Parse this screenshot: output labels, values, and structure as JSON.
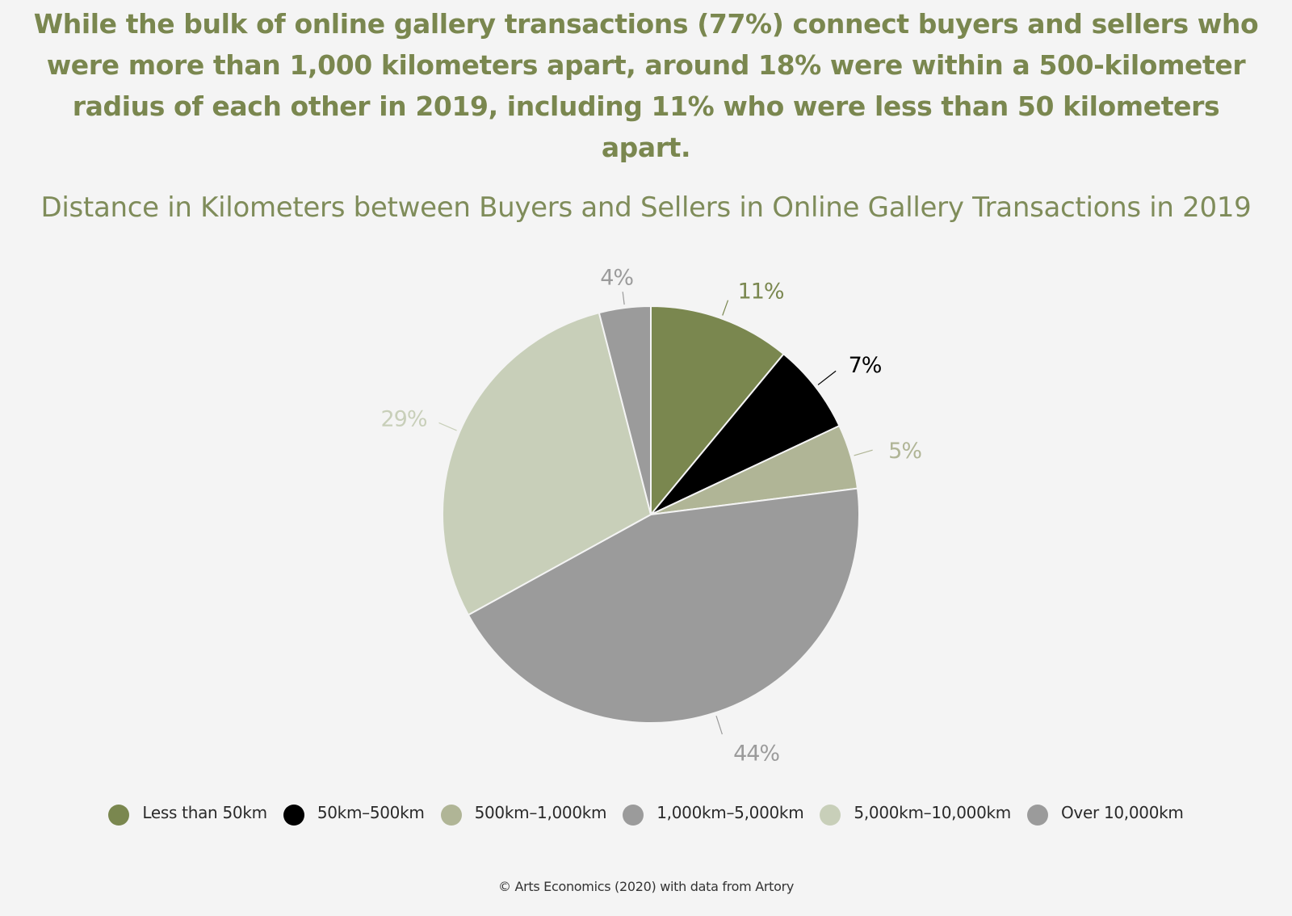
{
  "headline": "While the bulk of online gallery transactions (77%) connect buyers and sellers who were more than 1,000 kilometers apart, around 18% were within a 500-kilometer radius of each other in 2019, including 11% who were less than 50 kilometers apart.",
  "source": "© Arts Economics (2020) with data from Artory",
  "chart_data": {
    "type": "pie",
    "title": "Distance in Kilometers between Buyers and Sellers in Online Gallery Transactions in 2019",
    "categories": [
      "Less than 50km",
      "50km–500km",
      "500km–1,000km",
      "1,000km–5,000km",
      "5,000km–10,000km",
      "Over 10,000km"
    ],
    "values": [
      11,
      7,
      5,
      44,
      29,
      4
    ],
    "unit": "%",
    "data_labels": [
      "11%",
      "7%",
      "5%",
      "44%",
      "29%",
      "4%"
    ],
    "colors": [
      "#7a874f",
      "#000000",
      "#b0b596",
      "#9b9b9b",
      "#c8cfb9",
      "#9b9b9b"
    ],
    "label_colors": [
      "#7a874f",
      "#000000",
      "#b0b596",
      "#9b9b9b",
      "#c8cfb9",
      "#9b9b9b"
    ],
    "start_angle_deg": 0,
    "direction": "clockwise",
    "legend_position": "bottom"
  }
}
